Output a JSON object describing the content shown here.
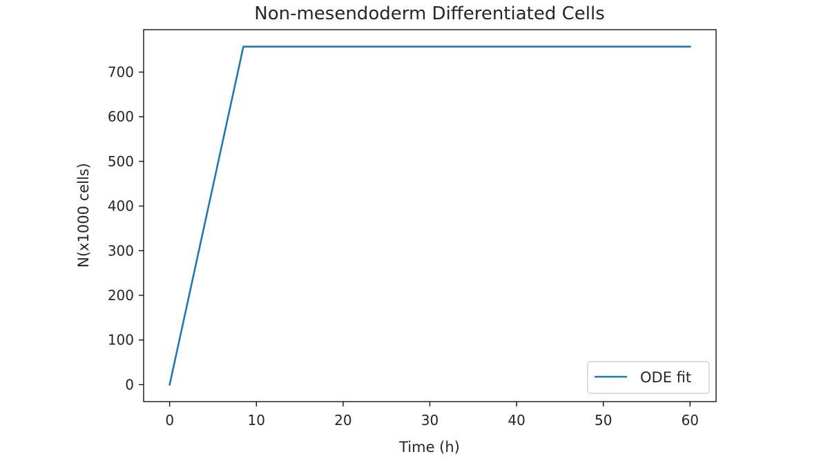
{
  "chart_data": {
    "type": "line",
    "title": "Non-mesendoderm Differentiated Cells",
    "xlabel": "Time (h)",
    "ylabel": "N(x1000 cells)",
    "xlim": [
      -3,
      63
    ],
    "ylim": [
      -38,
      795
    ],
    "xticks": [
      0,
      10,
      20,
      30,
      40,
      50,
      60
    ],
    "yticks": [
      0,
      100,
      200,
      300,
      400,
      500,
      600,
      700
    ],
    "grid": false,
    "legend_position": "lower right",
    "series": [
      {
        "name": "ODE fit",
        "color": "#1f77b4",
        "x": [
          0,
          8.5,
          60
        ],
        "y": [
          0,
          757,
          757
        ]
      }
    ]
  }
}
